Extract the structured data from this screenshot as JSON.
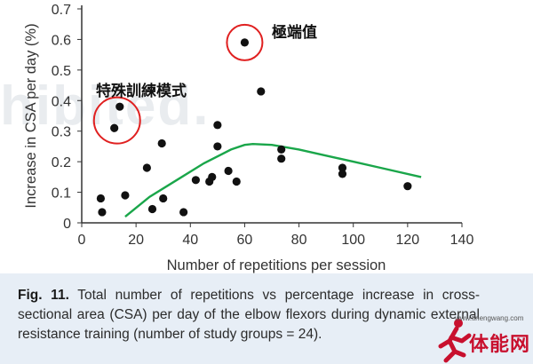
{
  "chart_data": {
    "type": "scatter",
    "xlabel": "Number of repetitions per session",
    "ylabel": "Increase in CSA per day (%)",
    "xlim": [
      0,
      140
    ],
    "ylim": [
      0,
      0.7
    ],
    "xticks": [
      "0",
      "20",
      "40",
      "60",
      "80",
      "100",
      "120",
      "140"
    ],
    "yticks": [
      "0",
      "0.1",
      "0.2",
      "0.3",
      "0.4",
      "0.5",
      "0.6",
      "0.7"
    ],
    "points": [
      {
        "x": 7,
        "y": 0.08
      },
      {
        "x": 7.5,
        "y": 0.035
      },
      {
        "x": 12,
        "y": 0.31
      },
      {
        "x": 14,
        "y": 0.38
      },
      {
        "x": 16,
        "y": 0.09
      },
      {
        "x": 24,
        "y": 0.18
      },
      {
        "x": 26,
        "y": 0.045
      },
      {
        "x": 29.5,
        "y": 0.26
      },
      {
        "x": 30,
        "y": 0.08
      },
      {
        "x": 37.5,
        "y": 0.035
      },
      {
        "x": 42,
        "y": 0.14
      },
      {
        "x": 47,
        "y": 0.135
      },
      {
        "x": 48,
        "y": 0.15
      },
      {
        "x": 50,
        "y": 0.32
      },
      {
        "x": 50,
        "y": 0.25
      },
      {
        "x": 54,
        "y": 0.17
      },
      {
        "x": 57,
        "y": 0.135
      },
      {
        "x": 60,
        "y": 0.59
      },
      {
        "x": 66,
        "y": 0.43
      },
      {
        "x": 73.5,
        "y": 0.24
      },
      {
        "x": 73.5,
        "y": 0.21
      },
      {
        "x": 96,
        "y": 0.18
      },
      {
        "x": 96,
        "y": 0.16
      },
      {
        "x": 120,
        "y": 0.12
      }
    ],
    "trend": {
      "color": "#1aa64a",
      "x": [
        16,
        25,
        35,
        45,
        55,
        60,
        63,
        70,
        80,
        90,
        100,
        110,
        125
      ],
      "y": [
        0.02,
        0.085,
        0.14,
        0.195,
        0.24,
        0.255,
        0.258,
        0.255,
        0.24,
        0.22,
        0.2,
        0.18,
        0.15
      ]
    },
    "highlights": [
      {
        "x": 13,
        "y": 0.335,
        "label": "特殊訓練模式",
        "color": "#e02020"
      },
      {
        "x": 60,
        "y": 0.59,
        "label": "極端值",
        "color": "#e02020"
      }
    ],
    "point_color": "#111111"
  },
  "caption": {
    "label": "Fig. 11.",
    "text": "Total number of repetitions vs percentage increase in cross-sectional area (CSA) per day of the elbow flexors during dynamic external resistance training (number of study groups = 24)."
  },
  "watermark": "hibited.",
  "logo": {
    "url": "www.tinengwang.com",
    "text": "体能网"
  }
}
